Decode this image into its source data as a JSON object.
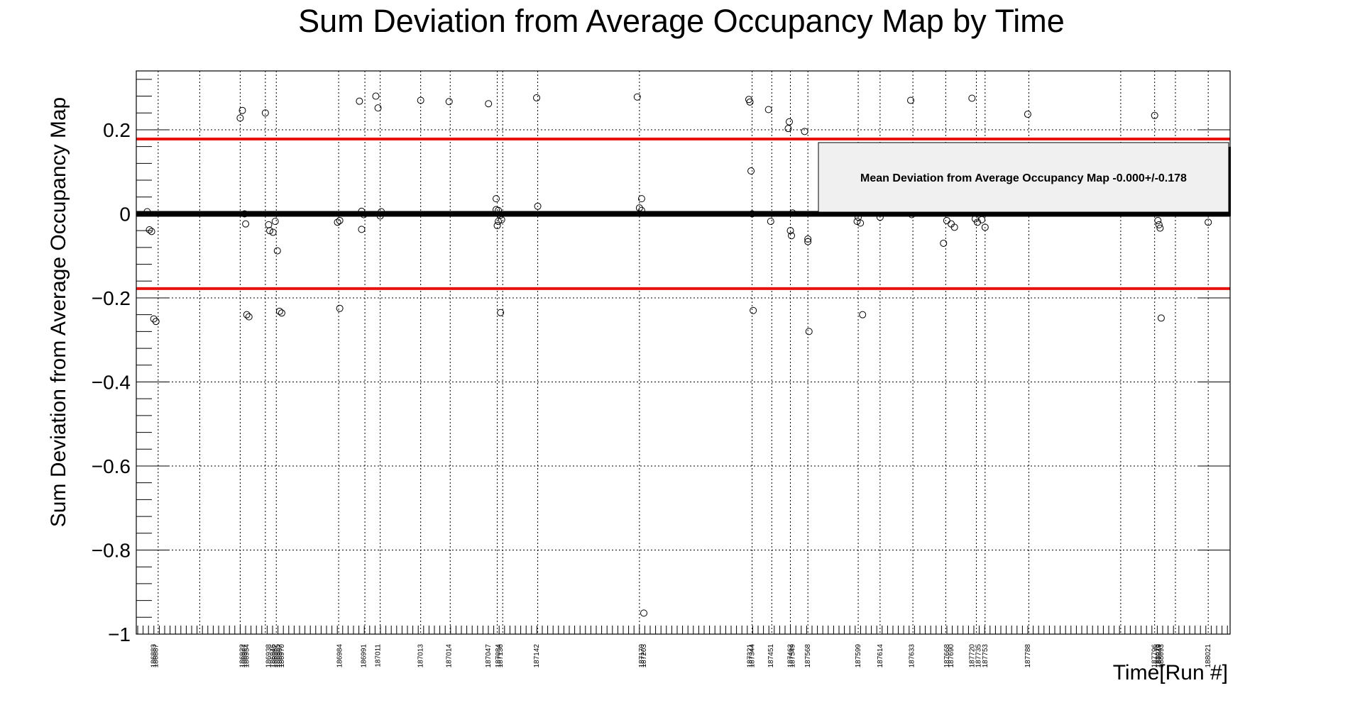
{
  "chart_data": {
    "type": "scatter",
    "title": "Sum Deviation from Average Occupancy Map by Time",
    "xlabel": "Time[Run #]",
    "ylabel": "Sum Deviation from Average Occupancy Map",
    "ylim": [
      -1.0,
      0.34
    ],
    "yticks": [
      0.2,
      0,
      -0.2,
      -0.4,
      -0.6,
      -0.8,
      -1
    ],
    "ytick_labels": [
      "0.2",
      "0",
      "−0.2",
      "−0.4",
      "−0.6",
      "−0.8",
      "−1"
    ],
    "grid": true,
    "x_tick_labels": [
      "186883",
      "186887",
      "186922",
      "186927",
      "186934",
      "186938",
      "186946",
      "186952",
      "186955",
      "186967",
      "186970",
      "186984",
      "186991",
      "187011",
      "187013",
      "187014",
      "187047",
      "187084",
      "187136",
      "187142",
      "187170",
      "187203",
      "187321",
      "187344",
      "187451",
      "187462",
      "187549",
      "187568",
      "187599",
      "187614",
      "187633",
      "187668",
      "187690",
      "187720",
      "187735",
      "187753",
      "187788",
      "187796",
      "187849",
      "188021",
      "188029",
      "188093"
    ],
    "x_labels_legible": [
      "187047",
      "187084",
      "187849",
      "188093"
    ],
    "bounds": {
      "mean": -0.0,
      "upper": 0.178,
      "lower": -0.178,
      "color": "#e8120f"
    },
    "stats_box": {
      "text": "Mean Deviation from Average Occupancy Map -0.000+/-0.178"
    },
    "points": [
      [
        0.01,
        0.005
      ],
      [
        0.012,
        -0.038
      ],
      [
        0.014,
        -0.042
      ],
      [
        0.016,
        -0.25
      ],
      [
        0.018,
        -0.256
      ],
      [
        0.095,
        0.228
      ],
      [
        0.097,
        0.246
      ],
      [
        0.099,
        0.0
      ],
      [
        0.1,
        -0.024
      ],
      [
        0.101,
        -0.24
      ],
      [
        0.103,
        -0.245
      ],
      [
        0.118,
        0.24
      ],
      [
        0.121,
        -0.026
      ],
      [
        0.122,
        -0.04
      ],
      [
        0.125,
        -0.044
      ],
      [
        0.127,
        -0.018
      ],
      [
        0.129,
        -0.088
      ],
      [
        0.131,
        -0.232
      ],
      [
        0.133,
        -0.236
      ],
      [
        0.184,
        -0.02
      ],
      [
        0.186,
        -0.016
      ],
      [
        0.186,
        -0.225
      ],
      [
        0.204,
        0.268
      ],
      [
        0.206,
        0.006
      ],
      [
        0.206,
        -0.037
      ],
      [
        0.208,
        -0.002
      ],
      [
        0.219,
        0.28
      ],
      [
        0.221,
        0.252
      ],
      [
        0.223,
        -0.005
      ],
      [
        0.224,
        0.005
      ],
      [
        0.26,
        0.27
      ],
      [
        0.286,
        0.267
      ],
      [
        0.322,
        0.262
      ],
      [
        0.329,
        0.036
      ],
      [
        0.329,
        0.01
      ],
      [
        0.331,
        0.008
      ],
      [
        0.331,
        -0.018
      ],
      [
        0.33,
        -0.028
      ],
      [
        0.333,
        -0.003
      ],
      [
        0.334,
        -0.014
      ],
      [
        0.333,
        -0.235
      ],
      [
        0.366,
        0.276
      ],
      [
        0.367,
        0.018
      ],
      [
        0.458,
        0.278
      ],
      [
        0.462,
        0.036
      ],
      [
        0.46,
        0.014
      ],
      [
        0.462,
        0.008
      ],
      [
        0.464,
        -0.95
      ],
      [
        0.56,
        0.272
      ],
      [
        0.561,
        0.266
      ],
      [
        0.562,
        0.102
      ],
      [
        0.563,
        0.0
      ],
      [
        0.564,
        -0.23
      ],
      [
        0.578,
        0.248
      ],
      [
        0.58,
        -0.018
      ],
      [
        0.597,
        0.219
      ],
      [
        0.596,
        0.203
      ],
      [
        0.598,
        -0.04
      ],
      [
        0.599,
        -0.052
      ],
      [
        0.6,
        0.002
      ],
      [
        0.611,
        0.196
      ],
      [
        0.614,
        -0.06
      ],
      [
        0.614,
        -0.066
      ],
      [
        0.615,
        -0.28
      ],
      [
        0.659,
        -0.018
      ],
      [
        0.662,
        -0.022
      ],
      [
        0.66,
        -0.008
      ],
      [
        0.664,
        -0.24
      ],
      [
        0.68,
        -0.008
      ],
      [
        0.708,
        0.27
      ],
      [
        0.709,
        -0.002
      ],
      [
        0.738,
        -0.07
      ],
      [
        0.741,
        -0.016
      ],
      [
        0.745,
        -0.024
      ],
      [
        0.748,
        -0.032
      ],
      [
        0.764,
        0.275
      ],
      [
        0.767,
        -0.012
      ],
      [
        0.769,
        -0.02
      ],
      [
        0.773,
        -0.014
      ],
      [
        0.776,
        -0.032
      ],
      [
        0.815,
        0.237
      ],
      [
        0.931,
        0.234
      ],
      [
        0.934,
        -0.016
      ],
      [
        0.935,
        -0.026
      ],
      [
        0.936,
        -0.034
      ],
      [
        0.937,
        -0.248
      ],
      [
        0.932,
        0.002
      ],
      [
        0.98,
        -0.02
      ]
    ]
  }
}
